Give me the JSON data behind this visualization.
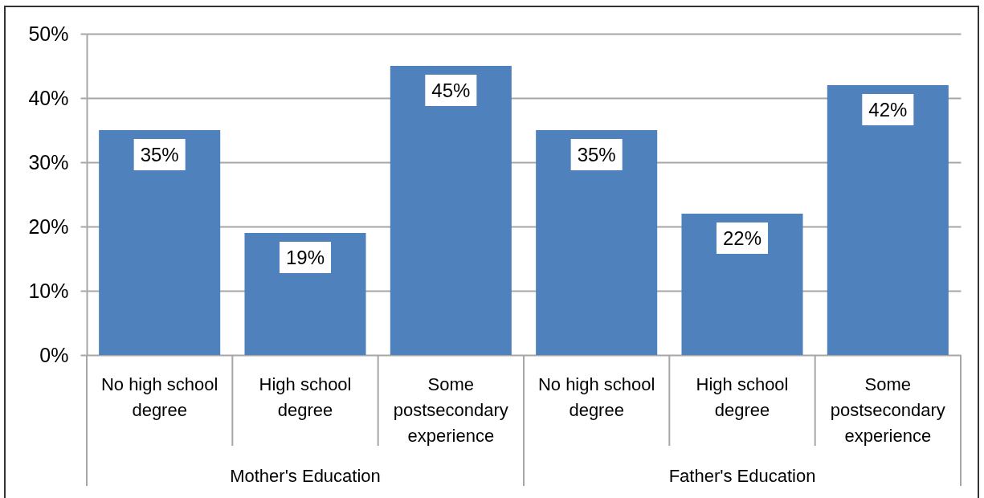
{
  "chart_data": {
    "type": "bar",
    "categories": [
      "No high school degree",
      "High school degree",
      "Some postsecondary experience",
      "No high school degree",
      "High school degree",
      "Some postsecondary experience"
    ],
    "values": [
      35,
      19,
      45,
      35,
      22,
      42
    ],
    "color": "#4f81bd",
    "value_labels": [
      "35%",
      "19%",
      "45%",
      "35%",
      "22%",
      "42%"
    ],
    "ylim": [
      0,
      50
    ],
    "yticks": [
      {
        "value": 0,
        "label": "0%"
      },
      {
        "value": 10,
        "label": "10%"
      },
      {
        "value": 20,
        "label": "20%"
      },
      {
        "value": 30,
        "label": "30%"
      },
      {
        "value": 40,
        "label": "40%"
      },
      {
        "value": 50,
        "label": "50%"
      }
    ],
    "grid": "y",
    "annotations": [
      "Mother's Education",
      "Father's Education"
    ]
  }
}
